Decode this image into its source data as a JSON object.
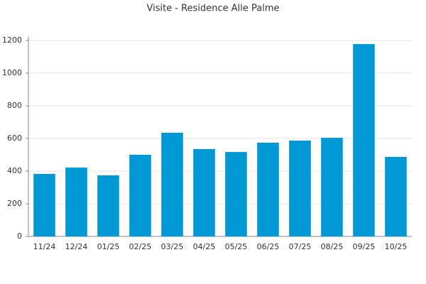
{
  "chart_data": {
    "type": "bar",
    "title": "Visite - Residence Alle Palme",
    "categories": [
      "11/24",
      "12/24",
      "01/25",
      "02/25",
      "03/25",
      "04/25",
      "05/25",
      "06/25",
      "07/25",
      "08/25",
      "09/25",
      "10/25"
    ],
    "values": [
      383,
      422,
      374,
      500,
      635,
      535,
      517,
      574,
      587,
      604,
      1178,
      487
    ],
    "color": "#0099d6",
    "ylim": [
      0,
      1200
    ],
    "yticks": [
      0,
      200,
      400,
      600,
      800,
      1000,
      1200
    ],
    "grid": true
  }
}
